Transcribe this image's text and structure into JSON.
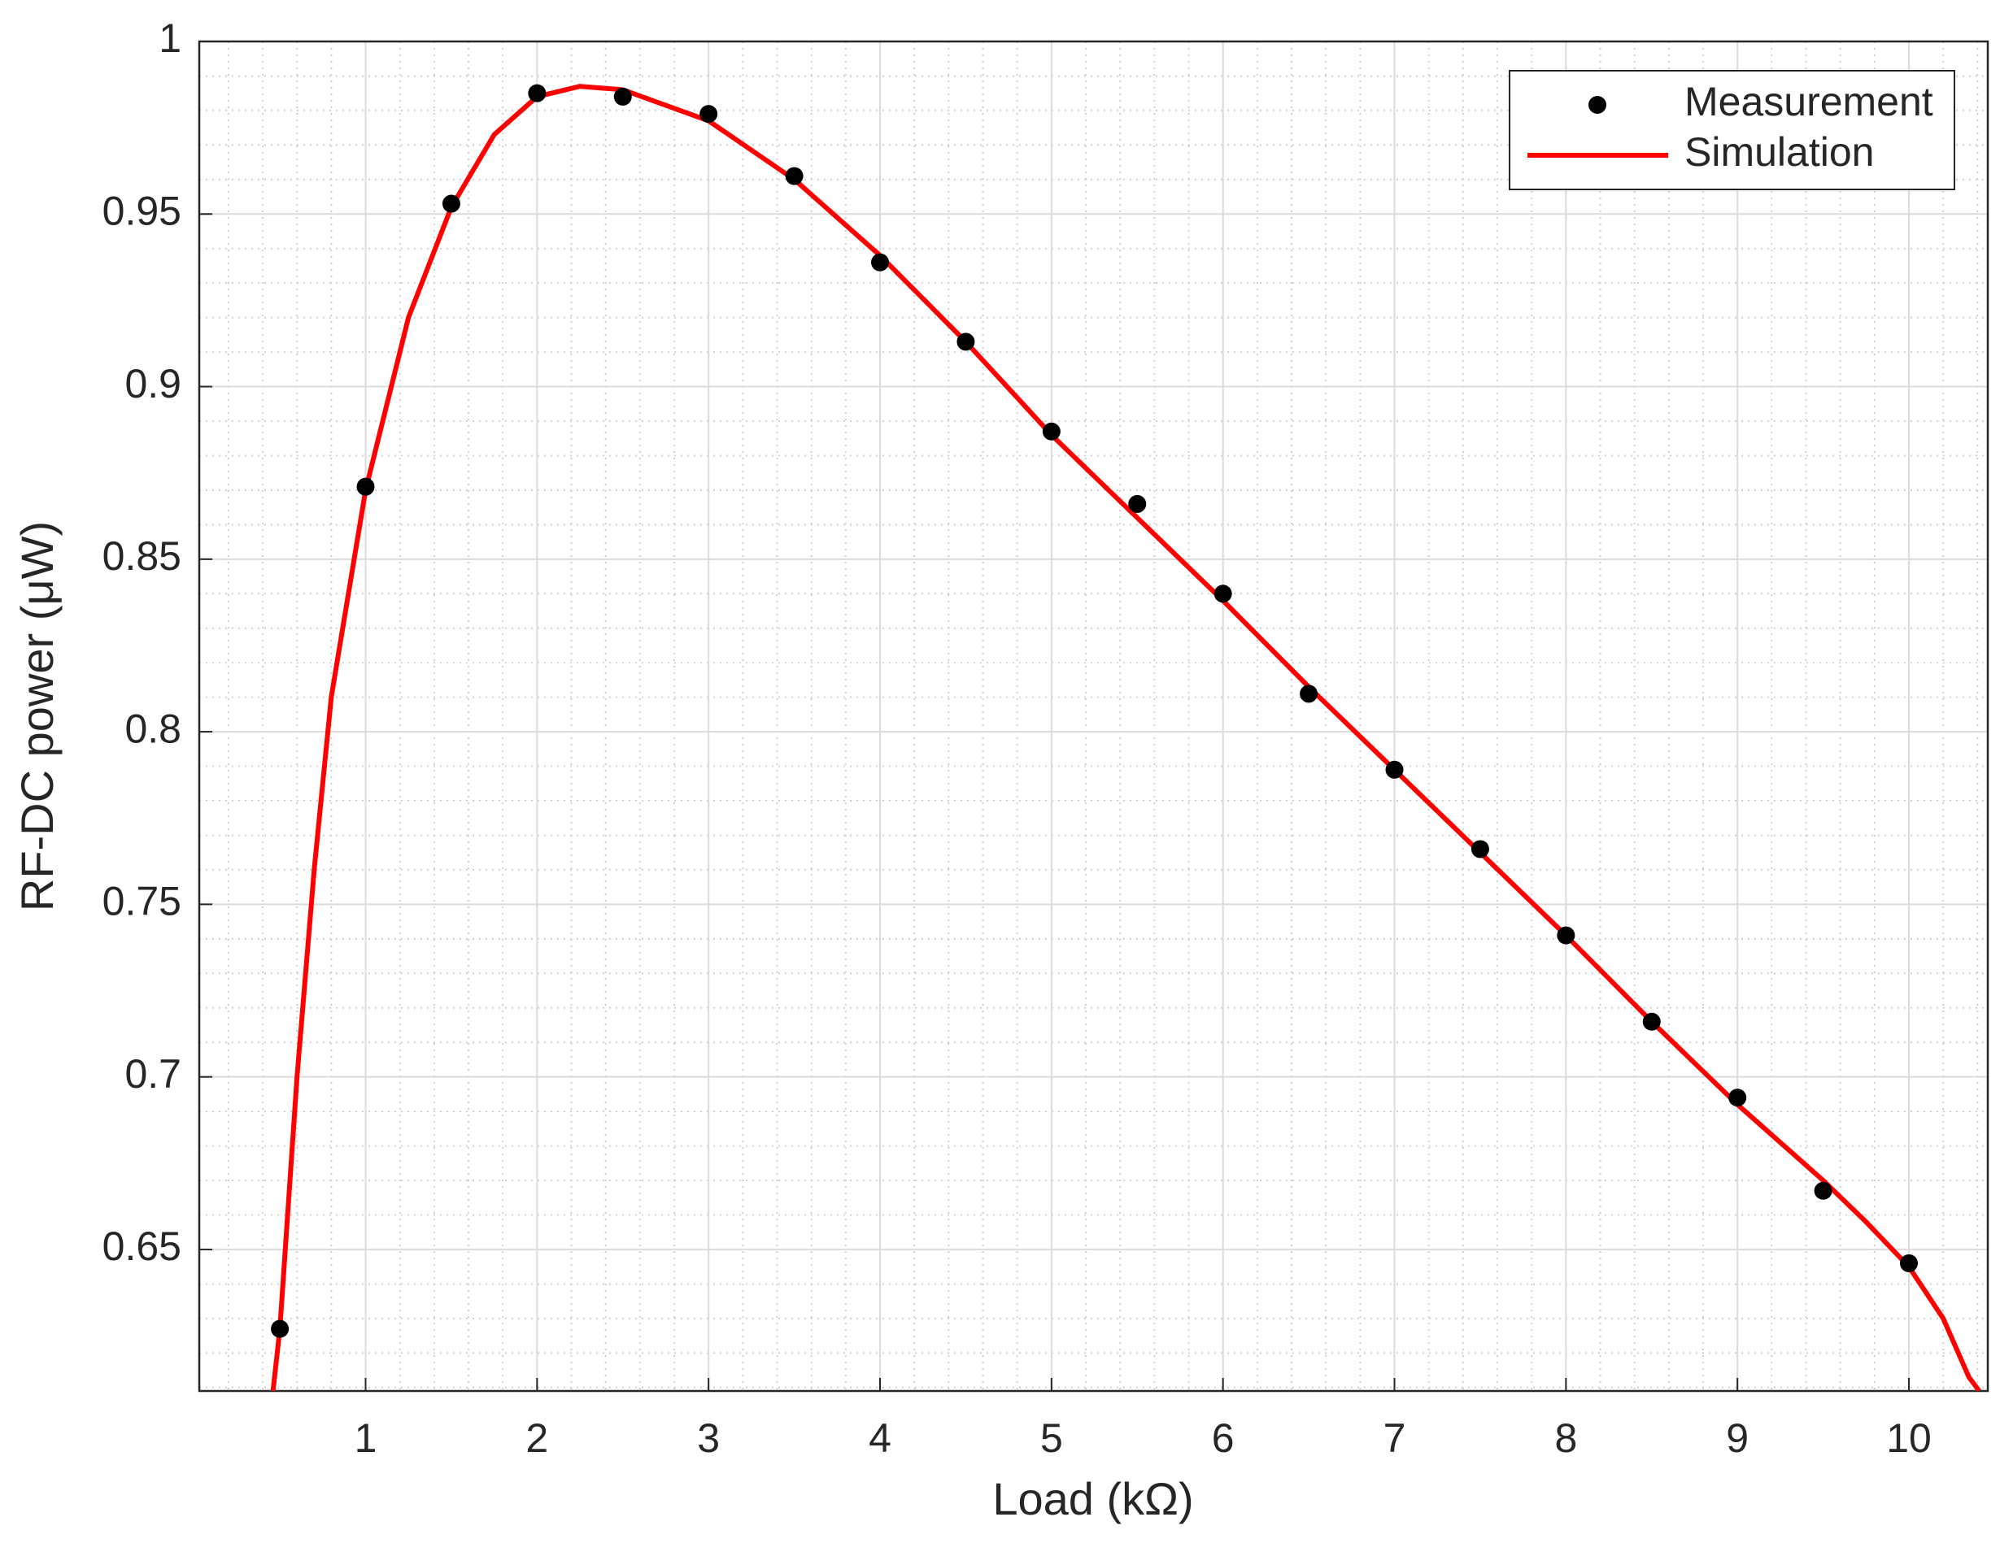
{
  "chart_data": {
    "type": "line",
    "x_label": "Load (kΩ)",
    "y_label": "RF-DC power (μW)",
    "xlim": [
      0.03,
      10.46
    ],
    "ylim": [
      0.609,
      1
    ],
    "xticks": [
      1,
      2,
      3,
      4,
      5,
      6,
      7,
      8,
      9,
      10
    ],
    "yticks": [
      0.65,
      0.7,
      0.75,
      0.8,
      0.85,
      0.9,
      0.95,
      1
    ],
    "grid": true,
    "minor_grid": true,
    "legend_position": "northeast",
    "series": [
      {
        "name": "Measurement",
        "color": "#000000",
        "mode": "markers",
        "x": [
          0.5,
          1,
          1.5,
          2,
          2.5,
          3,
          3.5,
          4,
          4.5,
          5,
          5.5,
          6,
          6.5,
          7,
          7.5,
          8,
          8.5,
          9,
          9.5,
          10
        ],
        "values": [
          0.627,
          0.871,
          0.953,
          0.985,
          0.984,
          0.979,
          0.961,
          0.936,
          0.913,
          0.887,
          0.866,
          0.84,
          0.811,
          0.789,
          0.766,
          0.741,
          0.716,
          0.694,
          0.667,
          0.646
        ]
      },
      {
        "name": "Simulation",
        "color": "#ff0000",
        "mode": "line",
        "x": [
          0.46,
          0.5,
          0.6,
          0.7,
          0.8,
          1.0,
          1.25,
          1.5,
          1.75,
          2,
          2.25,
          2.5,
          3,
          3.5,
          4,
          4.5,
          5,
          5.5,
          6,
          6.5,
          7,
          7.5,
          8,
          8.5,
          9,
          9.5,
          9.75,
          10,
          10.2,
          10.35,
          10.41
        ],
        "values": [
          0.609,
          0.627,
          0.7,
          0.76,
          0.81,
          0.87,
          0.92,
          0.952,
          0.973,
          0.984,
          0.987,
          0.986,
          0.977,
          0.96,
          0.938,
          0.913,
          0.886,
          0.862,
          0.838,
          0.813,
          0.789,
          0.765,
          0.741,
          0.716,
          0.692,
          0.67,
          0.658,
          0.645,
          0.63,
          0.613,
          0.609
        ]
      }
    ]
  }
}
